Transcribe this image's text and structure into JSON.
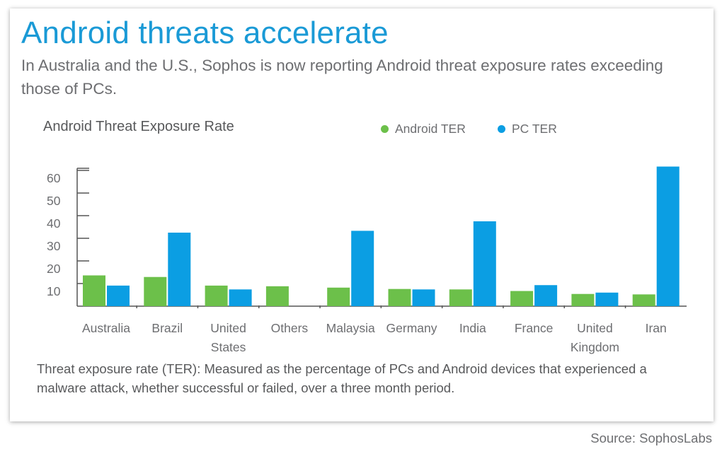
{
  "title": "Android threats accelerate",
  "subtitle": "In Australia and the U.S., Sophos is now reporting Android threat exposure rates exceeding those of PCs.",
  "footnote": "Threat exposure rate (TER): Measured as the percentage of PCs and Android devices that experienced a malware attack, whether successful or failed, over a three month period.",
  "source": "Source: SophosLabs",
  "colors": {
    "android": "#6cc04a",
    "pc": "#0b9ee3",
    "axis": "#555555",
    "title": "#1a9ad6"
  },
  "chart_data": {
    "type": "bar",
    "title": "Android Threat Exposure Rate",
    "xlabel": "",
    "ylabel": "",
    "ylim": [
      0,
      60
    ],
    "yticks": [
      10,
      20,
      30,
      40,
      50,
      60
    ],
    "ytick_labels": [
      "10",
      "20",
      "30",
      "40",
      "50",
      "60"
    ],
    "grid": false,
    "legend_position": "top-right",
    "categories": [
      [
        "Australia"
      ],
      [
        "Brazil"
      ],
      [
        "United",
        "States"
      ],
      [
        "Others"
      ],
      [
        "Malaysia"
      ],
      [
        "Germany"
      ],
      [
        "India"
      ],
      [
        "France"
      ],
      [
        "United",
        "Kingdom"
      ],
      [
        "Iran"
      ]
    ],
    "series": [
      {
        "name": "Android TER",
        "values": [
          13.6,
          12.9,
          9.1,
          8.8,
          8.2,
          7.6,
          7.4,
          6.7,
          5.4,
          5.2
        ]
      },
      {
        "name": "PC TER",
        "values": [
          9.1,
          32.5,
          7.4,
          null,
          33.3,
          7.4,
          37.5,
          9.3,
          6.0,
          61.7
        ]
      }
    ]
  }
}
